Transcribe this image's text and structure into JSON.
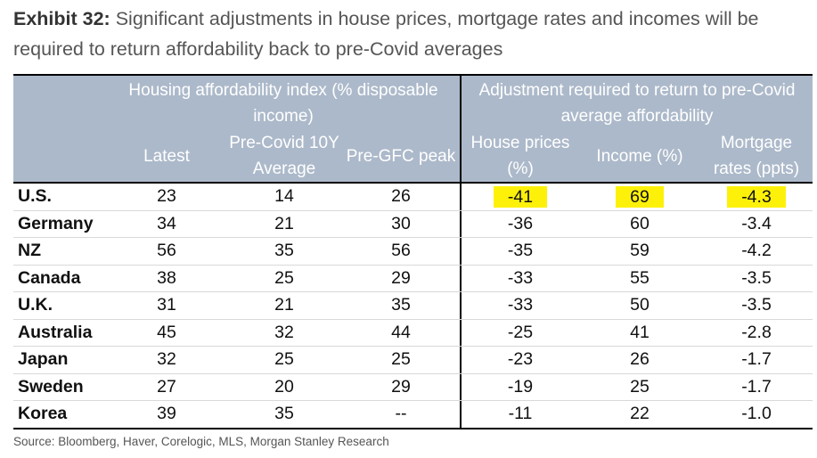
{
  "title": {
    "label": "Exhibit 32:",
    "text": "Significant adjustments in house prices, mortgage rates and incomes will be required to return affordability back to pre-Covid averages"
  },
  "table": {
    "group_headers": {
      "left": "Housing affordability index (% disposable income)",
      "right": "Adjustment required to return to pre-Covid average affordability"
    },
    "columns": [
      "",
      "Latest",
      "Pre-Covid 10Y Average",
      "Pre-GFC peak",
      "House prices (%)",
      "Income (%)",
      "Mortgage rates (ppts)"
    ],
    "rows": [
      [
        "U.S.",
        "23",
        "14",
        "26",
        "-41",
        "69",
        "-4.3"
      ],
      [
        "Germany",
        "34",
        "21",
        "30",
        "-36",
        "60",
        "-3.4"
      ],
      [
        "NZ",
        "56",
        "35",
        "56",
        "-35",
        "59",
        "-4.2"
      ],
      [
        "Canada",
        "38",
        "25",
        "29",
        "-33",
        "55",
        "-3.5"
      ],
      [
        "U.K.",
        "31",
        "21",
        "35",
        "-33",
        "50",
        "-3.5"
      ],
      [
        "Australia",
        "45",
        "32",
        "44",
        "-25",
        "41",
        "-2.8"
      ],
      [
        "Japan",
        "32",
        "25",
        "25",
        "-23",
        "26",
        "-1.7"
      ],
      [
        "Sweden",
        "27",
        "20",
        "29",
        "-19",
        "25",
        "-1.7"
      ],
      [
        "Korea",
        "39",
        "35",
        "--",
        "-11",
        "22",
        "-1.0"
      ]
    ],
    "highlight_color": "#fdf10a",
    "header_color": "#acb9ca"
  },
  "source": "Source: Bloomberg, Haver, Corelogic, MLS, Morgan Stanley Research"
}
